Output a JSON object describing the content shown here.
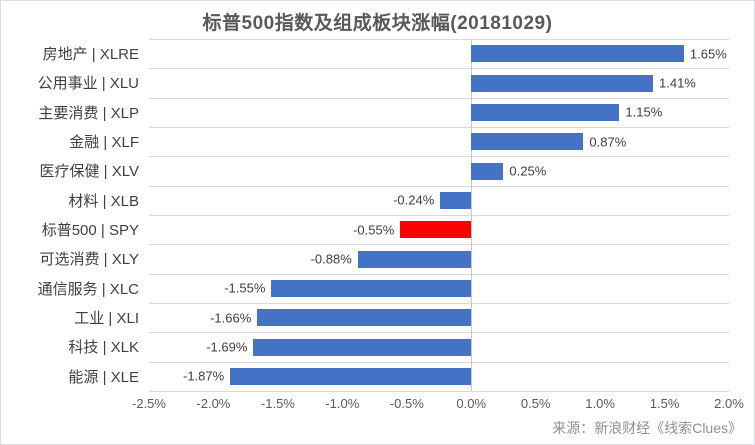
{
  "chart_data": {
    "type": "bar",
    "orientation": "horizontal",
    "title": "标普500指数及组成板块涨幅(20181029)",
    "categories": [
      "房地产 | XLRE",
      "公用事业 | XLU",
      "主要消费 | XLP",
      "金融 | XLF",
      "医疗保健 | XLV",
      "材料 | XLB",
      "标普500 | SPY",
      "可选消费 | XLY",
      "通信服务 | XLC",
      "工业 | XLI",
      "科技 | XLK",
      "能源 | XLE"
    ],
    "values": [
      1.65,
      1.41,
      1.15,
      0.87,
      0.25,
      -0.24,
      -0.55,
      -0.88,
      -1.55,
      -1.66,
      -1.69,
      -1.87
    ],
    "value_labels": [
      "1.65%",
      "1.41%",
      "1.15%",
      "0.87%",
      "0.25%",
      "-0.24%",
      "-0.55%",
      "-0.88%",
      "-1.55%",
      "-1.66%",
      "-1.69%",
      "-1.87%"
    ],
    "highlight_index": 6,
    "bar_color": "#4472C4",
    "highlight_color": "#FF0000",
    "xlim": [
      -2.5,
      2.0
    ],
    "x_tick_values": [
      -2.5,
      -2.0,
      -1.5,
      -1.0,
      -0.5,
      0.0,
      0.5,
      1.0,
      1.5,
      2.0
    ],
    "x_ticks": [
      "-2.5%",
      "-2.0%",
      "-1.5%",
      "-1.0%",
      "-0.5%",
      "0.0%",
      "0.5%",
      "1.0%",
      "1.5%",
      "2.0%"
    ],
    "grid": "category-boundaries",
    "legend": "none"
  },
  "footer": {
    "source": "来源：新浪财经《线索Clues》"
  }
}
